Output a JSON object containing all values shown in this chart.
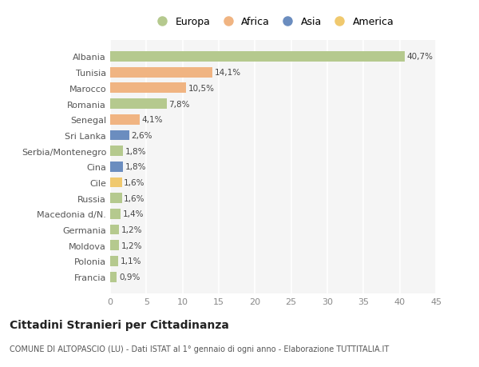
{
  "countries": [
    "Albania",
    "Tunisia",
    "Marocco",
    "Romania",
    "Senegal",
    "Sri Lanka",
    "Serbia/Montenegro",
    "Cina",
    "Cile",
    "Russia",
    "Macedonia d/N.",
    "Germania",
    "Moldova",
    "Polonia",
    "Francia"
  ],
  "values": [
    40.7,
    14.1,
    10.5,
    7.8,
    4.1,
    2.6,
    1.8,
    1.8,
    1.6,
    1.6,
    1.4,
    1.2,
    1.2,
    1.1,
    0.9
  ],
  "labels": [
    "40,7%",
    "14,1%",
    "10,5%",
    "7,8%",
    "4,1%",
    "2,6%",
    "1,8%",
    "1,8%",
    "1,6%",
    "1,6%",
    "1,4%",
    "1,2%",
    "1,2%",
    "1,1%",
    "0,9%"
  ],
  "continents": [
    "Europa",
    "Africa",
    "Africa",
    "Europa",
    "Africa",
    "Asia",
    "Europa",
    "Asia",
    "America",
    "Europa",
    "Europa",
    "Europa",
    "Europa",
    "Europa",
    "Europa"
  ],
  "continent_colors": {
    "Europa": "#b5c98e",
    "Africa": "#f0b482",
    "Asia": "#6b8dbf",
    "America": "#f0c96e"
  },
  "bg_color": "#ffffff",
  "plot_bg_color": "#f5f5f5",
  "grid_color": "#ffffff",
  "title1": "Cittadini Stranieri per Cittadinanza",
  "title2": "COMUNE DI ALTOPASCIO (LU) - Dati ISTAT al 1° gennaio di ogni anno - Elaborazione TUTTITALIA.IT",
  "xlim": [
    0,
    45
  ],
  "xticks": [
    0,
    5,
    10,
    15,
    20,
    25,
    30,
    35,
    40,
    45
  ],
  "legend_order": [
    "Europa",
    "Africa",
    "Asia",
    "America"
  ]
}
